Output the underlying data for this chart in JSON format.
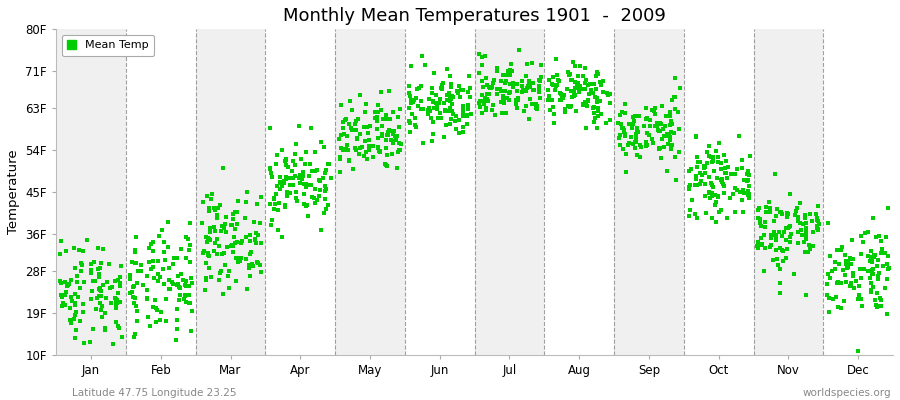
{
  "title": "Monthly Mean Temperatures 1901  -  2009",
  "ylabel": "Temperature",
  "xlabel_bottom_left": "Latitude 47.75 Longitude 23.25",
  "xlabel_bottom_right": "worldspecies.org",
  "ytick_labels": [
    "10F",
    "19F",
    "28F",
    "36F",
    "45F",
    "54F",
    "63F",
    "71F",
    "80F"
  ],
  "ytick_values": [
    10,
    19,
    28,
    36,
    45,
    54,
    63,
    71,
    80
  ],
  "ylim": [
    10,
    80
  ],
  "months": [
    "Jan",
    "Feb",
    "Mar",
    "Apr",
    "May",
    "Jun",
    "Jul",
    "Aug",
    "Sep",
    "Oct",
    "Nov",
    "Dec"
  ],
  "dot_color": "#00cc00",
  "dot_size": 5,
  "background_color": "#ffffff",
  "band_colors": [
    "#f0f0f0",
    "#ffffff"
  ],
  "years": 109,
  "monthly_mean_celsius": [
    -4.5,
    -4.0,
    1.5,
    8.5,
    13.5,
    17.5,
    19.5,
    19.0,
    14.5,
    8.5,
    2.5,
    -2.0
  ],
  "monthly_std_celsius": [
    3.2,
    3.2,
    2.8,
    2.5,
    2.3,
    2.0,
    1.8,
    1.8,
    2.0,
    2.0,
    2.5,
    2.8
  ]
}
